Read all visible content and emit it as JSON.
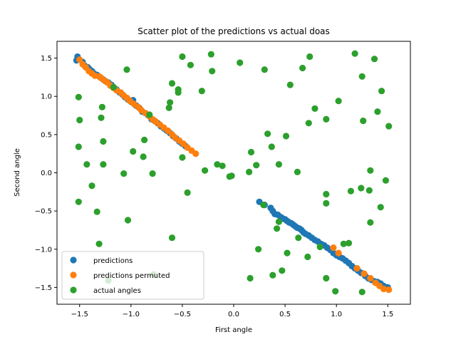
{
  "chart_data": {
    "type": "scatter",
    "title": "Scatter plot of the predictions vs actual doas",
    "xlabel": "First angle",
    "ylabel": "Second angle",
    "xlim": [
      -1.72,
      1.72
    ],
    "ylim": [
      -1.72,
      1.72
    ],
    "xticks": [
      -1.5,
      -1.0,
      -0.5,
      0.0,
      0.5,
      1.0,
      1.5
    ],
    "xtick_labels": [
      "−1.5",
      "−1.0",
      "−0.5",
      "0.0",
      "0.5",
      "1.0",
      "1.5"
    ],
    "yticks": [
      -1.5,
      -1.0,
      -0.5,
      0.0,
      0.5,
      1.0,
      1.5
    ],
    "ytick_labels": [
      "−1.5",
      "−1.0",
      "−0.5",
      "0.0",
      "0.5",
      "1.0",
      "1.5"
    ],
    "grid": false,
    "legend_position": "lower-left",
    "series": [
      {
        "name": "predictions",
        "color": "#1f77b4",
        "points": [
          [
            -1.53,
            1.47
          ],
          [
            -1.52,
            1.52
          ],
          [
            -1.47,
            1.45
          ],
          [
            -1.45,
            1.4
          ],
          [
            -1.42,
            1.38
          ],
          [
            -1.4,
            1.35
          ],
          [
            -1.38,
            1.33
          ],
          [
            -1.36,
            1.3
          ],
          [
            -1.33,
            1.28
          ],
          [
            -1.3,
            1.25
          ],
          [
            -1.27,
            1.22
          ],
          [
            -1.25,
            1.2
          ],
          [
            -1.22,
            1.18
          ],
          [
            -1.19,
            1.15
          ],
          [
            -1.17,
            1.12
          ],
          [
            -1.14,
            1.09
          ],
          [
            -1.11,
            1.05
          ],
          [
            -1.08,
            1.02
          ],
          [
            -1.06,
            0.99
          ],
          [
            -1.03,
            0.96
          ],
          [
            -1.0,
            0.93
          ],
          [
            -0.98,
            0.95
          ],
          [
            -0.95,
            0.88
          ],
          [
            -0.92,
            0.85
          ],
          [
            -0.89,
            0.8
          ],
          [
            -0.86,
            0.78
          ],
          [
            -0.83,
            0.75
          ],
          [
            -0.8,
            0.7
          ],
          [
            -0.77,
            0.68
          ],
          [
            -0.74,
            0.65
          ],
          [
            -0.71,
            0.61
          ],
          [
            -0.68,
            0.58
          ],
          [
            -0.65,
            0.55
          ],
          [
            -0.62,
            0.52
          ],
          [
            -0.59,
            0.48
          ],
          [
            -0.56,
            0.45
          ],
          [
            -0.53,
            0.41
          ],
          [
            -0.5,
            0.38
          ],
          [
            -0.47,
            0.35
          ],
          [
            0.25,
            -0.38
          ],
          [
            0.3,
            -0.42
          ],
          [
            0.36,
            -0.46
          ],
          [
            0.38,
            -0.5
          ],
          [
            0.4,
            -0.54
          ],
          [
            0.43,
            -0.55
          ],
          [
            0.46,
            -0.58
          ],
          [
            0.48,
            -0.6
          ],
          [
            0.5,
            -0.61
          ],
          [
            0.52,
            -0.63
          ],
          [
            0.54,
            -0.65
          ],
          [
            0.56,
            -0.66
          ],
          [
            0.58,
            -0.68
          ],
          [
            0.6,
            -0.7
          ],
          [
            0.62,
            -0.72
          ],
          [
            0.64,
            -0.73
          ],
          [
            0.66,
            -0.75
          ],
          [
            0.68,
            -0.78
          ],
          [
            0.7,
            -0.8
          ],
          [
            0.73,
            -0.82
          ],
          [
            0.76,
            -0.85
          ],
          [
            0.79,
            -0.88
          ],
          [
            0.82,
            -0.9
          ],
          [
            0.85,
            -0.93
          ],
          [
            0.88,
            -0.95
          ],
          [
            0.91,
            -0.98
          ],
          [
            0.94,
            -1.01
          ],
          [
            0.97,
            -1.05
          ],
          [
            1.0,
            -1.08
          ],
          [
            1.03,
            -1.1
          ],
          [
            1.06,
            -1.12
          ],
          [
            1.09,
            -1.15
          ],
          [
            1.12,
            -1.18
          ],
          [
            1.15,
            -1.22
          ],
          [
            1.18,
            -1.25
          ],
          [
            1.21,
            -1.28
          ],
          [
            1.24,
            -1.31
          ],
          [
            1.28,
            -1.35
          ],
          [
            1.31,
            -1.38
          ],
          [
            1.34,
            -1.4
          ],
          [
            1.37,
            -1.42
          ],
          [
            1.4,
            -1.43
          ],
          [
            1.43,
            -1.45
          ],
          [
            1.46,
            -1.48
          ],
          [
            1.5,
            -1.5
          ]
        ]
      },
      {
        "name": "predictions permuted",
        "color": "#ff7f0e",
        "points": [
          [
            -1.5,
            1.48
          ],
          [
            -1.47,
            1.42
          ],
          [
            -1.44,
            1.38
          ],
          [
            -1.41,
            1.33
          ],
          [
            -1.38,
            1.3
          ],
          [
            -1.35,
            1.27
          ],
          [
            -1.31,
            1.26
          ],
          [
            -1.29,
            1.24
          ],
          [
            -1.26,
            1.21
          ],
          [
            -1.23,
            1.18
          ],
          [
            -1.2,
            1.14
          ],
          [
            -1.17,
            1.11
          ],
          [
            -1.14,
            1.08
          ],
          [
            -1.1,
            1.05
          ],
          [
            -1.07,
            1.01
          ],
          [
            -1.04,
            0.98
          ],
          [
            -1.01,
            0.94
          ],
          [
            -0.97,
            0.9
          ],
          [
            -0.93,
            0.86
          ],
          [
            -0.9,
            0.82
          ],
          [
            -0.86,
            0.78
          ],
          [
            -0.82,
            0.74
          ],
          [
            -0.79,
            0.7
          ],
          [
            -0.76,
            0.67
          ],
          [
            -0.72,
            0.63
          ],
          [
            -0.68,
            0.59
          ],
          [
            -0.64,
            0.55
          ],
          [
            -0.6,
            0.5
          ],
          [
            -0.57,
            0.46
          ],
          [
            -0.53,
            0.42
          ],
          [
            -0.49,
            0.38
          ],
          [
            -0.45,
            0.33
          ],
          [
            -0.41,
            0.29
          ],
          [
            -0.37,
            0.25
          ],
          [
            0.97,
            -0.98
          ],
          [
            1.02,
            -1.05
          ],
          [
            1.2,
            -1.25
          ],
          [
            1.27,
            -1.32
          ],
          [
            1.33,
            -1.38
          ],
          [
            1.38,
            -1.44
          ],
          [
            1.42,
            -1.48
          ],
          [
            1.46,
            -1.52
          ],
          [
            1.51,
            -1.53
          ]
        ]
      },
      {
        "name": "actual angles",
        "color": "#2ca02c",
        "points": [
          [
            -1.51,
            0.99
          ],
          [
            -1.5,
            0.69
          ],
          [
            -1.51,
            0.34
          ],
          [
            -1.51,
            -0.38
          ],
          [
            -1.43,
            0.11
          ],
          [
            -1.38,
            -0.17
          ],
          [
            -1.33,
            -0.51
          ],
          [
            -1.31,
            -0.93
          ],
          [
            -1.29,
            0.72
          ],
          [
            -1.28,
            0.86
          ],
          [
            -1.27,
            0.41
          ],
          [
            -1.27,
            0.11
          ],
          [
            -1.22,
            -1.41
          ],
          [
            -1.17,
            1.12
          ],
          [
            -1.07,
            -0.01
          ],
          [
            -1.03,
            -0.62
          ],
          [
            -1.04,
            1.35
          ],
          [
            -0.98,
            0.28
          ],
          [
            -0.88,
            0.21
          ],
          [
            -0.87,
            0.43
          ],
          [
            -0.82,
            0.76
          ],
          [
            -0.79,
            -0.01
          ],
          [
            -0.78,
            -1.33
          ],
          [
            -0.63,
            0.85
          ],
          [
            -0.62,
            0.92
          ],
          [
            -0.6,
            -0.85
          ],
          [
            -0.6,
            1.17
          ],
          [
            -0.54,
            1.09
          ],
          [
            -0.54,
            1.05
          ],
          [
            -0.5,
            1.52
          ],
          [
            -0.5,
            0.2
          ],
          [
            -0.45,
            -0.26
          ],
          [
            -0.42,
            1.41
          ],
          [
            -0.31,
            1.07
          ],
          [
            -0.28,
            0.03
          ],
          [
            -0.22,
            1.55
          ],
          [
            -0.21,
            1.33
          ],
          [
            -0.16,
            0.11
          ],
          [
            -0.11,
            0.09
          ],
          [
            -0.04,
            -0.05
          ],
          [
            -0.02,
            -0.04
          ],
          [
            0.06,
            1.44
          ],
          [
            0.15,
            0.01
          ],
          [
            0.17,
            0.27
          ],
          [
            0.16,
            -1.38
          ],
          [
            0.22,
            0.1
          ],
          [
            0.24,
            -1.0
          ],
          [
            0.29,
            -0.42
          ],
          [
            0.3,
            1.35
          ],
          [
            0.33,
            0.51
          ],
          [
            0.37,
            0.34
          ],
          [
            0.38,
            -1.34
          ],
          [
            0.42,
            -0.73
          ],
          [
            0.44,
            0.11
          ],
          [
            0.44,
            -0.64
          ],
          [
            0.47,
            -1.28
          ],
          [
            0.51,
            0.48
          ],
          [
            0.52,
            -1.05
          ],
          [
            0.55,
            1.15
          ],
          [
            0.62,
            0.01
          ],
          [
            0.63,
            -0.85
          ],
          [
            0.67,
            1.37
          ],
          [
            0.72,
            -1.1
          ],
          [
            0.73,
            0.65
          ],
          [
            0.74,
            1.52
          ],
          [
            0.79,
            0.84
          ],
          [
            0.84,
            -0.97
          ],
          [
            0.9,
            0.7
          ],
          [
            0.9,
            -0.28
          ],
          [
            0.9,
            -0.4
          ],
          [
            0.9,
            -1.38
          ],
          [
            0.99,
            -1.55
          ],
          [
            1.02,
            0.94
          ],
          [
            1.07,
            -0.93
          ],
          [
            1.12,
            -0.92
          ],
          [
            1.14,
            -0.24
          ],
          [
            1.18,
            1.56
          ],
          [
            1.24,
            -0.2
          ],
          [
            1.25,
            -1.56
          ],
          [
            1.25,
            1.26
          ],
          [
            1.26,
            0.68
          ],
          [
            1.32,
            -0.23
          ],
          [
            1.33,
            0.03
          ],
          [
            1.33,
            -0.65
          ],
          [
            1.37,
            1.49
          ],
          [
            1.4,
            0.8
          ],
          [
            1.43,
            -0.45
          ],
          [
            1.44,
            1.07
          ],
          [
            1.48,
            -0.1
          ],
          [
            1.51,
            0.61
          ]
        ]
      }
    ]
  }
}
